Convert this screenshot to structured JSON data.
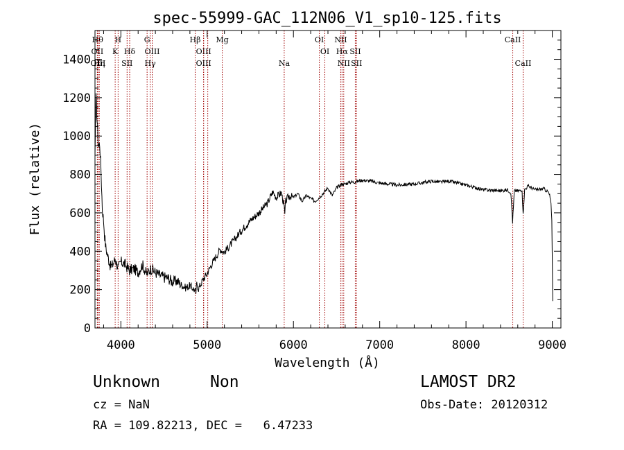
{
  "chart_data": {
    "type": "line",
    "title": "spec-55999-GAC_112N06_V1_sp10-125.fits",
    "xlabel": "Wavelength (Å)",
    "ylabel": "Flux (relative)",
    "xlim": [
      3700,
      9100
    ],
    "ylim": [
      0,
      1550
    ],
    "xticks": [
      4000,
      5000,
      6000,
      7000,
      8000,
      9000
    ],
    "yticks": [
      0,
      200,
      400,
      600,
      800,
      1000,
      1200,
      1400
    ],
    "xtick_labels": [
      "4000",
      "5000",
      "6000",
      "7000",
      "8000",
      "9000"
    ],
    "ytick_labels": [
      "0",
      "200",
      "400",
      "600",
      "800",
      "1000",
      "1200",
      "1400"
    ],
    "series": [
      {
        "color": "#000000",
        "x": [
          3700,
          3712,
          3725,
          3740,
          3755,
          3770,
          3785,
          3800,
          3812,
          3825,
          3840,
          3860,
          3880,
          3905,
          3935,
          3970,
          4000,
          4050,
          4100,
          4150,
          4200,
          4250,
          4300,
          4350,
          4400,
          4450,
          4500,
          4550,
          4600,
          4650,
          4700,
          4750,
          4800,
          4850,
          4870,
          4880,
          4900,
          4950,
          5000,
          5050,
          5100,
          5150,
          5200,
          5300,
          5400,
          5500,
          5600,
          5700,
          5760,
          5800,
          5860,
          5890,
          5900,
          5910,
          5950,
          6000,
          6050,
          6100,
          6150,
          6200,
          6250,
          6300,
          6350,
          6400,
          6450,
          6500,
          6560,
          6600,
          6650,
          6700,
          6800,
          6900,
          7000,
          7200,
          7400,
          7600,
          7700,
          7800,
          7900,
          8000,
          8200,
          8400,
          8480,
          8520,
          8540,
          8560,
          8620,
          8650,
          8662,
          8680,
          8720,
          8800,
          8900,
          8950,
          8970,
          8985,
          8995,
          9005
        ],
        "y": [
          900,
          1200,
          1080,
          950,
          960,
          820,
          620,
          560,
          480,
          420,
          390,
          355,
          320,
          330,
          360,
          310,
          345,
          330,
          300,
          310,
          290,
          330,
          280,
          310,
          290,
          275,
          265,
          260,
          240,
          245,
          225,
          210,
          220,
          200,
          185,
          230,
          205,
          250,
          285,
          330,
          370,
          410,
          395,
          450,
          510,
          560,
          600,
          650,
          710,
          680,
          705,
          640,
          590,
          660,
          690,
          680,
          700,
          660,
          690,
          675,
          660,
          680,
          705,
          730,
          690,
          730,
          750,
          750,
          760,
          760,
          770,
          765,
          755,
          745,
          750,
          765,
          760,
          765,
          755,
          745,
          720,
          715,
          720,
          705,
          550,
          715,
          715,
          720,
          590,
          720,
          740,
          720,
          725,
          710,
          690,
          650,
          560,
          140
        ]
      }
    ],
    "line_markers": [
      {
        "x": 3730,
        "label": "Hθ",
        "row": 0
      },
      {
        "x": 3727,
        "label": "OII",
        "row": 1
      },
      {
        "x": 3750,
        "label": "Hη",
        "row": 2
      },
      {
        "x": 3735,
        "label": "OIII",
        "row": 2
      },
      {
        "x": 3934,
        "label": "K",
        "row": 1
      },
      {
        "x": 3968,
        "label": "H",
        "row": 0
      },
      {
        "x": 4102,
        "label": "Hδ",
        "row": 1
      },
      {
        "x": 4072,
        "label": "SII",
        "row": 2
      },
      {
        "x": 4304,
        "label": "G",
        "row": 0
      },
      {
        "x": 4340,
        "label": "Hγ",
        "row": 2
      },
      {
        "x": 4363,
        "label": "OIII",
        "row": 1
      },
      {
        "x": 4861,
        "label": "Hβ",
        "row": 0
      },
      {
        "x": 4959,
        "label": "OIII",
        "row": 1
      },
      {
        "x": 4959,
        "label": "OIII",
        "row": 2
      },
      {
        "x": 5007,
        "label": "",
        "row": 2
      },
      {
        "x": 5175,
        "label": "Mg",
        "row": 0
      },
      {
        "x": 5893,
        "label": "Na",
        "row": 2
      },
      {
        "x": 6300,
        "label": "OI",
        "row": 0
      },
      {
        "x": 6364,
        "label": "OI",
        "row": 1
      },
      {
        "x": 6548,
        "label": "NII",
        "row": 0
      },
      {
        "x": 6563,
        "label": "Hα",
        "row": 1
      },
      {
        "x": 6583,
        "label": "NII",
        "row": 2
      },
      {
        "x": 6717,
        "label": "SII",
        "row": 1
      },
      {
        "x": 6731,
        "label": "SII",
        "row": 2
      },
      {
        "x": 8542,
        "label": "CaII",
        "row": 0
      },
      {
        "x": 8662,
        "label": "CaII",
        "row": 2
      }
    ],
    "marker_color": "#a00000"
  },
  "info": {
    "object_class": "Unknown",
    "object_subclass": "Non",
    "survey": "LAMOST DR2",
    "redshift": "cz = NaN",
    "obs_date": "Obs-Date: 20120312",
    "coords": "RA = 109.82213, DEC =   6.47233"
  }
}
